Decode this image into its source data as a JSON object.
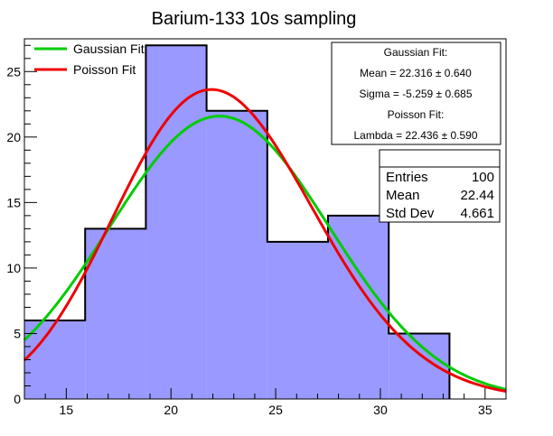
{
  "chart_data": {
    "type": "histogram",
    "title": "Barium-133 10s sampling",
    "xlabel": "",
    "ylabel": "",
    "xlim": [
      13.0,
      36.0
    ],
    "ylim": [
      0,
      27.5
    ],
    "x_ticks": [
      15,
      20,
      25,
      30,
      35
    ],
    "y_ticks": [
      0,
      5,
      10,
      15,
      20,
      25
    ],
    "grid": false,
    "fill_color": "#9999ff",
    "bins": [
      {
        "x0": 13.0,
        "x1": 15.9,
        "count": 6
      },
      {
        "x0": 15.9,
        "x1": 18.8,
        "count": 13
      },
      {
        "x0": 18.8,
        "x1": 21.7,
        "count": 27
      },
      {
        "x0": 21.7,
        "x1": 24.6,
        "count": 22
      },
      {
        "x0": 24.6,
        "x1": 27.5,
        "count": 12
      },
      {
        "x0": 27.5,
        "x1": 30.4,
        "count": 14
      },
      {
        "x0": 30.4,
        "x1": 33.3,
        "count": 5
      }
    ],
    "series": [
      {
        "name": "Gaussian Fit",
        "color": "#00cc00",
        "kind": "gaussian",
        "params": {
          "norm": 21.6,
          "mean": 22.316,
          "sigma": 5.259
        }
      },
      {
        "name": "Poisson Fit",
        "color": "#ee0000",
        "kind": "poisson",
        "params": {
          "norm": 23.5,
          "lambda": 22.436
        }
      }
    ],
    "legend_position": "top-left"
  },
  "fit_box": {
    "lines": [
      "Gaussian Fit:",
      "Mean = 22.316 ± 0.640",
      "Sigma = -5.259 ± 0.685",
      "Poisson Fit:",
      "Lambda = 22.436 ± 0.590"
    ]
  },
  "stats_box": {
    "rows": [
      {
        "label": "Entries",
        "value": "100"
      },
      {
        "label": "Mean",
        "value": "22.44"
      },
      {
        "label": "Std Dev",
        "value": "4.661"
      }
    ]
  }
}
